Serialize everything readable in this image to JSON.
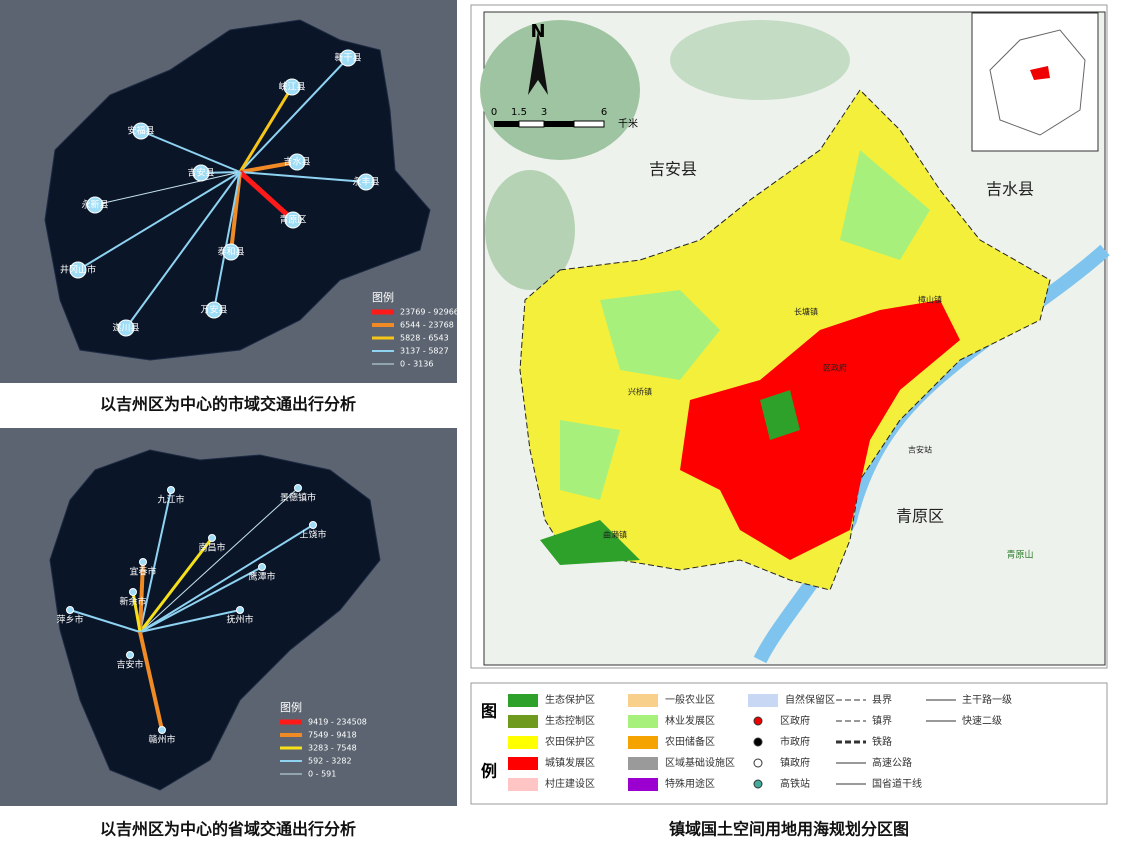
{
  "city_map": {
    "title": "以吉州区为中心的市域交通出行分析",
    "places": [
      "新干县",
      "峡江县",
      "安福县",
      "吉安县",
      "吉水县",
      "永丰县",
      "永新县",
      "青原区",
      "泰和县",
      "井冈山市",
      "万安县",
      "遂川县"
    ],
    "legend": {
      "title": "图例",
      "items": [
        {
          "label": "23769 - 92966",
          "color": "#ff1a1a"
        },
        {
          "label": "6544 - 23768",
          "color": "#f08a24"
        },
        {
          "label": "5828 - 6543",
          "color": "#f5c518"
        },
        {
          "label": "3137 - 5827",
          "color": "#8fd3f2"
        },
        {
          "label": "0 - 3136",
          "color": "#c7e3f0"
        }
      ]
    }
  },
  "province_map": {
    "title": "以吉州区为中心的省域交通出行分析",
    "places": [
      "九江市",
      "景德镇市",
      "南昌市",
      "上饶市",
      "宜春市",
      "鹰潭市",
      "新余市",
      "萍乡市",
      "抚州市",
      "吉安市",
      "赣州市"
    ],
    "legend": {
      "title": "图例",
      "items": [
        {
          "label": "9419 - 234508",
          "color": "#ff1a1a"
        },
        {
          "label": "7549 - 9418",
          "color": "#f08a24"
        },
        {
          "label": "3283 - 7548",
          "color": "#f5e01a"
        },
        {
          "label": "592 - 3282",
          "color": "#8fd3f2"
        },
        {
          "label": "0 - 591",
          "color": "#c7e3f0"
        }
      ]
    }
  },
  "zoning_map": {
    "title": "镇域国土空间用地用海规划分区图",
    "north": "N",
    "scale": [
      0,
      1.5,
      3,
      6
    ],
    "scale_unit": "千米",
    "labels": [
      "吉安县",
      "吉水县",
      "青原区",
      "青原山",
      "吉安站",
      "兴桥镇",
      "长塘镇",
      "樟山镇",
      "曲濑镇",
      "区政府"
    ],
    "legend": {
      "heading": [
        "图",
        "例"
      ],
      "zones": [
        {
          "label": "生态保护区",
          "color": "#2ea12a"
        },
        {
          "label": "生态控制区",
          "color": "#6e9a1e"
        },
        {
          "label": "农田保护区",
          "color": "#ffff00"
        },
        {
          "label": "城镇发展区",
          "color": "#ff0000"
        },
        {
          "label": "村庄建设区",
          "color": "#ffc4c4"
        },
        {
          "label": "一般农业区",
          "color": "#f8d08c"
        },
        {
          "label": "林业发展区",
          "color": "#a8f07c"
        },
        {
          "label": "农田储备区",
          "color": "#f5a300"
        },
        {
          "label": "区域基础设施区",
          "color": "#9a9a9a"
        },
        {
          "label": "特殊用途区",
          "color": "#9b00d0"
        },
        {
          "label": "自然保留区",
          "color": "#c8d8f4"
        }
      ],
      "symbols": [
        "区政府",
        "市政府",
        "镇政府",
        "高铁站"
      ],
      "lines": [
        "县界",
        "镇界",
        "铁路",
        "高速公路",
        "国省道干线",
        "主干路一级",
        "快速二级"
      ]
    }
  }
}
